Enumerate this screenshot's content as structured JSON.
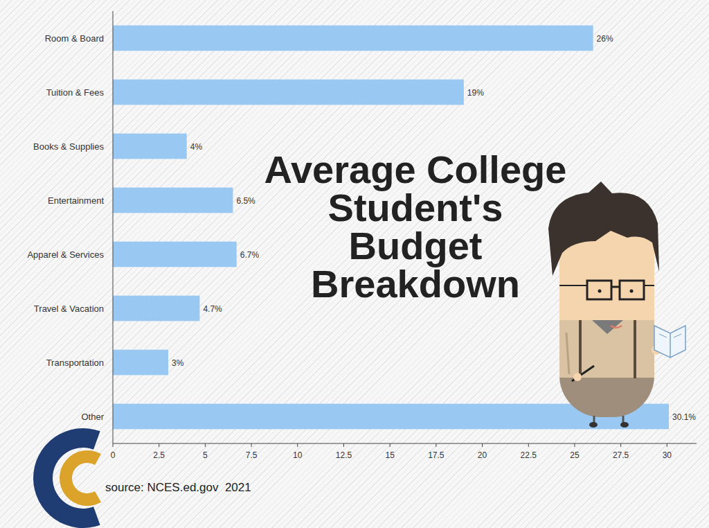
{
  "chart_data": {
    "type": "bar",
    "title": "Average College Student's Budget Breakdown",
    "orientation": "horizontal",
    "categories": [
      "Room & Board",
      "Tuition & Fees",
      "Books & Supplies",
      "Entertainment",
      "Apparel & Services",
      "Travel & Vacation",
      "Transportation",
      "Other"
    ],
    "values": [
      26,
      19,
      4,
      6.5,
      6.7,
      4.7,
      3,
      30.1
    ],
    "value_labels": [
      "26%",
      "19%",
      "4%",
      "6.5%",
      "6.7%",
      "4.7%",
      "3%",
      "30.1%"
    ],
    "color": "#99c9f2",
    "xlim": [
      0,
      31.6
    ],
    "xticks": [
      0,
      2.5,
      5,
      7.5,
      10,
      12.5,
      15,
      17.5,
      20,
      22.5,
      25,
      27.5,
      30
    ],
    "data_labels": true,
    "grid": false,
    "source": "source: NCES.ed.gov  2021"
  }
}
